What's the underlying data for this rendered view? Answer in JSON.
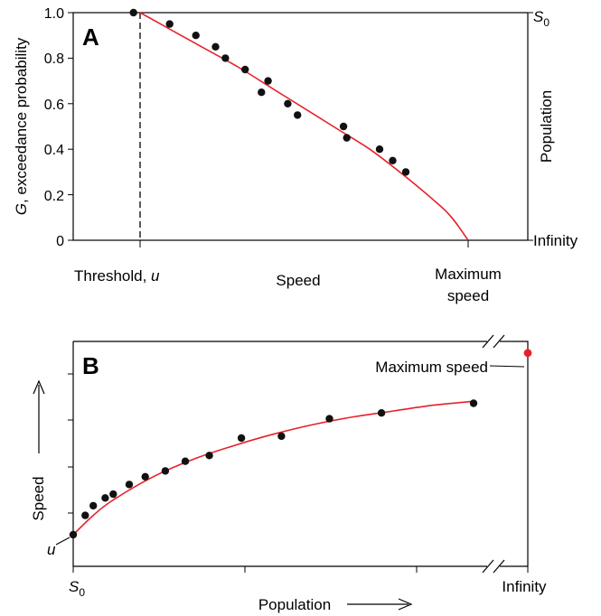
{
  "colors": {
    "curve": "#e8202a",
    "point": "#111111",
    "max_point": "#e8202a",
    "axis": "#000000"
  },
  "panelA": {
    "label": "A",
    "ylabel_g": "G",
    "ylabel_rest": ", exceedance probability",
    "right_label": "Population",
    "right_top": "S",
    "right_top_sub": "0",
    "right_bottom": "Infinity",
    "threshold_text": "Threshold, ",
    "threshold_u": "u",
    "xlabel": "Speed",
    "max_line1": "Maximum",
    "max_line2": "speed",
    "yticks": [
      "0",
      "0.2",
      "0.4",
      "0.6",
      "0.8",
      "1.0"
    ]
  },
  "panelB": {
    "label": "B",
    "ylabel": "Speed",
    "u_label": "u",
    "x_left": "S",
    "x_left_sub": "0",
    "x_right": "Infinity",
    "xlabel": "Population",
    "max_label": "Maximum speed"
  },
  "chart_data": [
    {
      "type": "scatter",
      "panel": "A",
      "title": "",
      "xlabel": "Speed",
      "ylabel": "G, exceedance probability",
      "ylim": [
        0,
        1.0
      ],
      "yticks": [
        0,
        0.2,
        0.4,
        0.6,
        0.8,
        1.0
      ],
      "x_units": "relative speed (threshold u = 0, maximum speed = 1)",
      "series": [
        {
          "name": "observed",
          "x": [
            -0.02,
            0.09,
            0.17,
            0.23,
            0.26,
            0.32,
            0.37,
            0.39,
            0.45,
            0.48,
            0.62,
            0.63,
            0.73,
            0.77,
            0.81
          ],
          "y": [
            1.0,
            0.95,
            0.9,
            0.85,
            0.8,
            0.75,
            0.65,
            0.7,
            0.6,
            0.55,
            0.5,
            0.45,
            0.4,
            0.35,
            0.3
          ]
        },
        {
          "name": "fitted",
          "x": [
            0.0,
            0.1,
            0.2,
            0.3,
            0.4,
            0.5,
            0.6,
            0.7,
            0.8,
            0.9,
            0.95,
            1.0
          ],
          "y": [
            1.0,
            0.92,
            0.84,
            0.76,
            0.67,
            0.58,
            0.49,
            0.4,
            0.29,
            0.17,
            0.1,
            0.0
          ]
        }
      ],
      "threshold_x": 0.0,
      "maximum_speed_x": 1.0
    },
    {
      "type": "scatter",
      "panel": "B",
      "title": "",
      "xlabel": "Population",
      "ylabel": "Speed",
      "x_units": "relative population (S0 = 0, last observation = 1)",
      "y_units": "relative speed (u = 0, maximum speed = 1)",
      "series": [
        {
          "name": "observed",
          "x": [
            0.0,
            0.03,
            0.05,
            0.08,
            0.1,
            0.14,
            0.18,
            0.23,
            0.28,
            0.34,
            0.42,
            0.52,
            0.64,
            0.77,
            1.0
          ],
          "y": [
            0.0,
            0.1,
            0.15,
            0.19,
            0.21,
            0.26,
            0.3,
            0.33,
            0.38,
            0.41,
            0.5,
            0.51,
            0.6,
            0.63,
            0.68
          ]
        },
        {
          "name": "fitted",
          "x": [
            0.0,
            0.05,
            0.1,
            0.2,
            0.3,
            0.4,
            0.5,
            0.6,
            0.7,
            0.8,
            0.9,
            1.0
          ],
          "y": [
            0.0,
            0.1,
            0.18,
            0.3,
            0.39,
            0.46,
            0.52,
            0.57,
            0.61,
            0.64,
            0.67,
            0.69
          ]
        }
      ],
      "maximum_speed_y": 0.94
    }
  ]
}
